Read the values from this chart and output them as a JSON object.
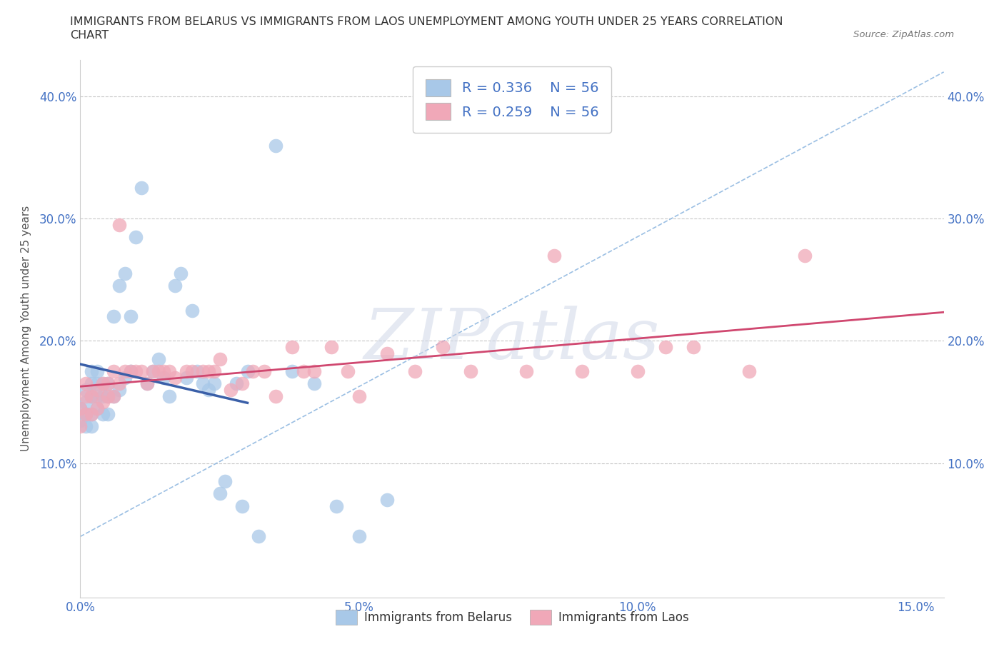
{
  "title_line1": "IMMIGRANTS FROM BELARUS VS IMMIGRANTS FROM LAOS UNEMPLOYMENT AMONG YOUTH UNDER 25 YEARS CORRELATION",
  "title_line2": "CHART",
  "source_text": "Source: ZipAtlas.com",
  "ylabel": "Unemployment Among Youth under 25 years",
  "xlim": [
    0.0,
    0.155
  ],
  "ylim": [
    -0.01,
    0.43
  ],
  "xticks": [
    0.0,
    0.05,
    0.1,
    0.15
  ],
  "xtick_labels": [
    "0.0%",
    "5.0%",
    "10.0%",
    "15.0%"
  ],
  "ytick_vals": [
    0.1,
    0.2,
    0.3,
    0.4
  ],
  "ytick_labels": [
    "10.0%",
    "20.0%",
    "30.0%",
    "40.0%"
  ],
  "color_belarus": "#a8c8e8",
  "color_laos": "#f0a8b8",
  "color_reg_belarus": "#3a5fa8",
  "color_reg_laos": "#d04870",
  "color_diag": "#90b8e0",
  "watermark": "ZIPatlas",
  "background_color": "#ffffff",
  "grid_color": "#c8c8c8",
  "legend_text_color": "#4472c4",
  "tick_color": "#4472c4",
  "belarus_x": [
    0.0,
    0.0,
    0.001,
    0.001,
    0.001,
    0.001,
    0.002,
    0.002,
    0.002,
    0.002,
    0.002,
    0.003,
    0.003,
    0.003,
    0.003,
    0.004,
    0.004,
    0.004,
    0.005,
    0.005,
    0.005,
    0.006,
    0.006,
    0.007,
    0.007,
    0.008,
    0.008,
    0.009,
    0.009,
    0.01,
    0.011,
    0.012,
    0.013,
    0.014,
    0.015,
    0.016,
    0.017,
    0.018,
    0.019,
    0.02,
    0.021,
    0.022,
    0.023,
    0.024,
    0.025,
    0.026,
    0.028,
    0.029,
    0.03,
    0.032,
    0.035,
    0.038,
    0.042,
    0.046,
    0.05,
    0.055
  ],
  "belarus_y": [
    0.135,
    0.145,
    0.13,
    0.14,
    0.15,
    0.16,
    0.13,
    0.14,
    0.155,
    0.165,
    0.175,
    0.145,
    0.155,
    0.165,
    0.175,
    0.14,
    0.155,
    0.165,
    0.14,
    0.155,
    0.165,
    0.155,
    0.22,
    0.16,
    0.245,
    0.17,
    0.255,
    0.175,
    0.22,
    0.285,
    0.325,
    0.165,
    0.175,
    0.185,
    0.17,
    0.155,
    0.245,
    0.255,
    0.17,
    0.225,
    0.175,
    0.165,
    0.16,
    0.165,
    0.075,
    0.085,
    0.165,
    0.065,
    0.175,
    0.04,
    0.36,
    0.175,
    0.165,
    0.065,
    0.04,
    0.07
  ],
  "laos_x": [
    0.0,
    0.0,
    0.001,
    0.001,
    0.001,
    0.002,
    0.002,
    0.003,
    0.003,
    0.004,
    0.004,
    0.005,
    0.005,
    0.006,
    0.006,
    0.007,
    0.007,
    0.008,
    0.009,
    0.01,
    0.011,
    0.012,
    0.013,
    0.014,
    0.015,
    0.016,
    0.017,
    0.019,
    0.02,
    0.022,
    0.023,
    0.024,
    0.025,
    0.027,
    0.029,
    0.031,
    0.033,
    0.035,
    0.038,
    0.04,
    0.042,
    0.045,
    0.048,
    0.05,
    0.055,
    0.06,
    0.065,
    0.07,
    0.08,
    0.085,
    0.09,
    0.1,
    0.105,
    0.11,
    0.12,
    0.13
  ],
  "laos_y": [
    0.13,
    0.145,
    0.14,
    0.155,
    0.165,
    0.14,
    0.155,
    0.145,
    0.16,
    0.15,
    0.165,
    0.155,
    0.165,
    0.155,
    0.175,
    0.295,
    0.165,
    0.175,
    0.175,
    0.175,
    0.175,
    0.165,
    0.175,
    0.175,
    0.175,
    0.175,
    0.17,
    0.175,
    0.175,
    0.175,
    0.175,
    0.175,
    0.185,
    0.16,
    0.165,
    0.175,
    0.175,
    0.155,
    0.195,
    0.175,
    0.175,
    0.195,
    0.175,
    0.155,
    0.19,
    0.175,
    0.195,
    0.175,
    0.175,
    0.27,
    0.175,
    0.175,
    0.195,
    0.195,
    0.175,
    0.27
  ]
}
